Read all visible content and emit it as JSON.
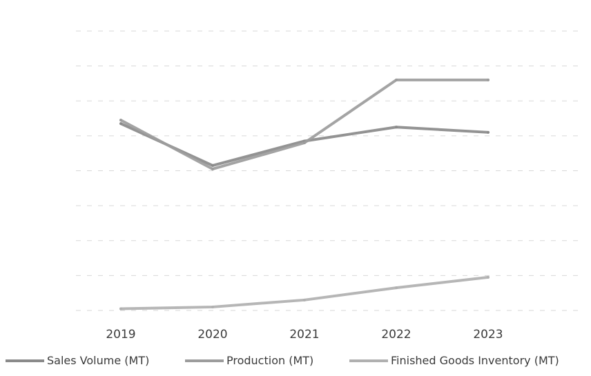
{
  "chart_data": {
    "type": "line",
    "title": "",
    "xlabel": "",
    "ylabel": "",
    "categories": [
      "2019",
      "2020",
      "2021",
      "2022",
      "2023"
    ],
    "ylim": [
      0,
      8
    ],
    "grid": true,
    "legend_position": "bottom",
    "series": [
      {
        "name": "Sales Volume (MT)",
        "color": "#8a8a8a",
        "values": [
          5.35,
          4.15,
          4.85,
          5.25,
          5.1
        ]
      },
      {
        "name": "Production (MT)",
        "color": "#9c9c9c",
        "values": [
          5.45,
          4.05,
          4.8,
          6.6,
          6.6
        ]
      },
      {
        "name": "Finished Goods Inventory (MT)",
        "color": "#b0b0b0",
        "values": [
          0.05,
          0.1,
          0.3,
          0.65,
          0.95
        ]
      }
    ]
  }
}
